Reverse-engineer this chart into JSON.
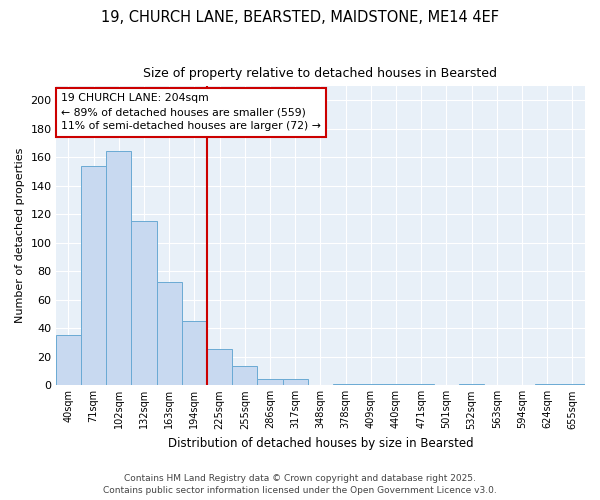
{
  "title1": "19, CHURCH LANE, BEARSTED, MAIDSTONE, ME14 4EF",
  "title2": "Size of property relative to detached houses in Bearsted",
  "xlabel": "Distribution of detached houses by size in Bearsted",
  "ylabel": "Number of detached properties",
  "bar_labels": [
    "40sqm",
    "71sqm",
    "102sqm",
    "132sqm",
    "163sqm",
    "194sqm",
    "225sqm",
    "255sqm",
    "286sqm",
    "317sqm",
    "348sqm",
    "378sqm",
    "409sqm",
    "440sqm",
    "471sqm",
    "501sqm",
    "532sqm",
    "563sqm",
    "594sqm",
    "624sqm",
    "655sqm"
  ],
  "bar_values": [
    35,
    154,
    164,
    115,
    72,
    45,
    25,
    13,
    4,
    4,
    0,
    1,
    1,
    1,
    1,
    0,
    1,
    0,
    0,
    1,
    1
  ],
  "bar_color": "#c8d9f0",
  "bar_edgecolor": "#6aaad4",
  "vline_color": "#cc0000",
  "annotation_line1": "19 CHURCH LANE: 204sqm",
  "annotation_line2": "← 89% of detached houses are smaller (559)",
  "annotation_line3": "11% of semi-detached houses are larger (72) →",
  "annotation_box_color": "#cc0000",
  "ylim": [
    0,
    210
  ],
  "yticks": [
    0,
    20,
    40,
    60,
    80,
    100,
    120,
    140,
    160,
    180,
    200
  ],
  "footer1": "Contains HM Land Registry data © Crown copyright and database right 2025.",
  "footer2": "Contains public sector information licensed under the Open Government Licence v3.0.",
  "bg_color": "#e8f0f8"
}
